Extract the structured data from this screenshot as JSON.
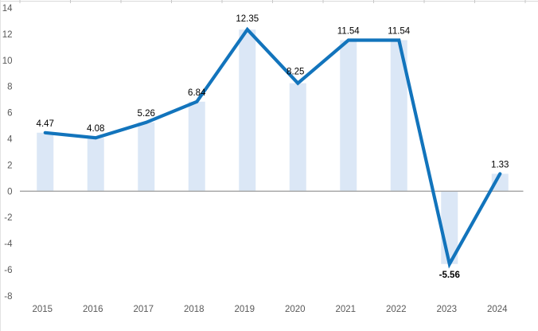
{
  "chart_data": {
    "type": "line",
    "title": "",
    "subtitle": "",
    "xlabel": "",
    "ylabel": "",
    "categories": [
      "2015",
      "2016",
      "2017",
      "2018",
      "2019",
      "2020",
      "2021",
      "2022",
      "2023",
      "2024"
    ],
    "series": [
      {
        "name": "value-bars",
        "type": "bar",
        "values": [
          4.47,
          4.08,
          5.26,
          6.84,
          12.35,
          8.25,
          11.54,
          11.54,
          -5.56,
          1.33
        ]
      },
      {
        "name": "value-line",
        "type": "line",
        "values": [
          4.47,
          4.08,
          5.26,
          6.84,
          12.35,
          8.25,
          11.54,
          11.54,
          -5.56,
          1.33
        ]
      }
    ],
    "data_labels": [
      {
        "text": "4.47"
      },
      {
        "text": "4.08"
      },
      {
        "text": "5.26"
      },
      {
        "text": "6.84"
      },
      {
        "text": "12.35",
        "dy": -2
      },
      {
        "text": "8.25",
        "dx": -3,
        "dy": -3
      },
      {
        "text": "11.54"
      },
      {
        "text": "11.54"
      },
      {
        "text": "-5.56",
        "below": true,
        "bold": true
      },
      {
        "text": "1.33"
      }
    ],
    "ylim": [
      -8,
      14
    ],
    "ytick_step": 2,
    "yticks": [
      "14",
      "12",
      "10",
      "8",
      "6",
      "4",
      "2",
      "0",
      "-2",
      "-4",
      "-6",
      "-8"
    ],
    "grid": false,
    "legend": "none",
    "colors": {
      "line": "#1274bc",
      "bar_fill": "#dbe7f6",
      "zero_line": "#a3a3a3",
      "top_axis": "#d9d9d9",
      "top_tick": "#c8c8c8",
      "axis_text": "#595959",
      "label_text": "#000000"
    }
  }
}
